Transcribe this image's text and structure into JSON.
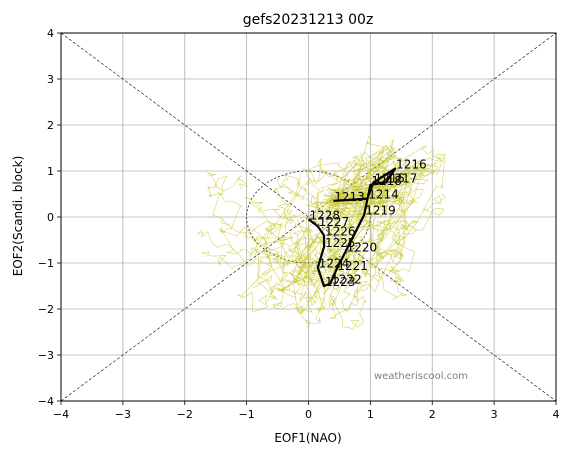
{
  "chart_data": {
    "type": "line",
    "title": "gefs20231213 00z",
    "xlabel": "EOF1(NAO)",
    "ylabel": "EOF2(Scandi. block)",
    "xlim": [
      -4,
      4
    ],
    "ylim": [
      -4,
      4
    ],
    "xticks": [
      "−4",
      "−3",
      "−2",
      "−1",
      "0",
      "1",
      "2",
      "3",
      "4"
    ],
    "yticks": [
      "−4",
      "−3",
      "−2",
      "−1",
      "0",
      "1",
      "2",
      "3",
      "4"
    ],
    "grid": true,
    "watermark": "weatheriscool.com",
    "colors": {
      "mean": "#000000",
      "members": "#c8c832",
      "grid": "#b0b0b0"
    },
    "mean_track": [
      {
        "label": "1213",
        "x": 0.4,
        "y": 0.35
      },
      {
        "label": "1214",
        "x": 0.95,
        "y": 0.4
      },
      {
        "label": "1215",
        "x": 1.05,
        "y": 0.75
      },
      {
        "label": "1216",
        "x": 1.4,
        "y": 1.05
      },
      {
        "label": "1217",
        "x": 1.25,
        "y": 0.75
      },
      {
        "label": "1218",
        "x": 1.0,
        "y": 0.7
      },
      {
        "label": "1219",
        "x": 0.9,
        "y": 0.05
      },
      {
        "label": "1220",
        "x": 0.6,
        "y": -0.75
      },
      {
        "label": "1221",
        "x": 0.45,
        "y": -1.15
      },
      {
        "label": "1222",
        "x": 0.35,
        "y": -1.45
      },
      {
        "label": "1223",
        "x": 0.25,
        "y": -1.5
      },
      {
        "label": "1224",
        "x": 0.15,
        "y": -1.1
      },
      {
        "label": "1225",
        "x": 0.25,
        "y": -0.65
      },
      {
        "label": "1226",
        "x": 0.25,
        "y": -0.4
      },
      {
        "label": "1227",
        "x": 0.15,
        "y": -0.2
      },
      {
        "label": "1228",
        "x": 0.0,
        "y": -0.05
      }
    ]
  }
}
